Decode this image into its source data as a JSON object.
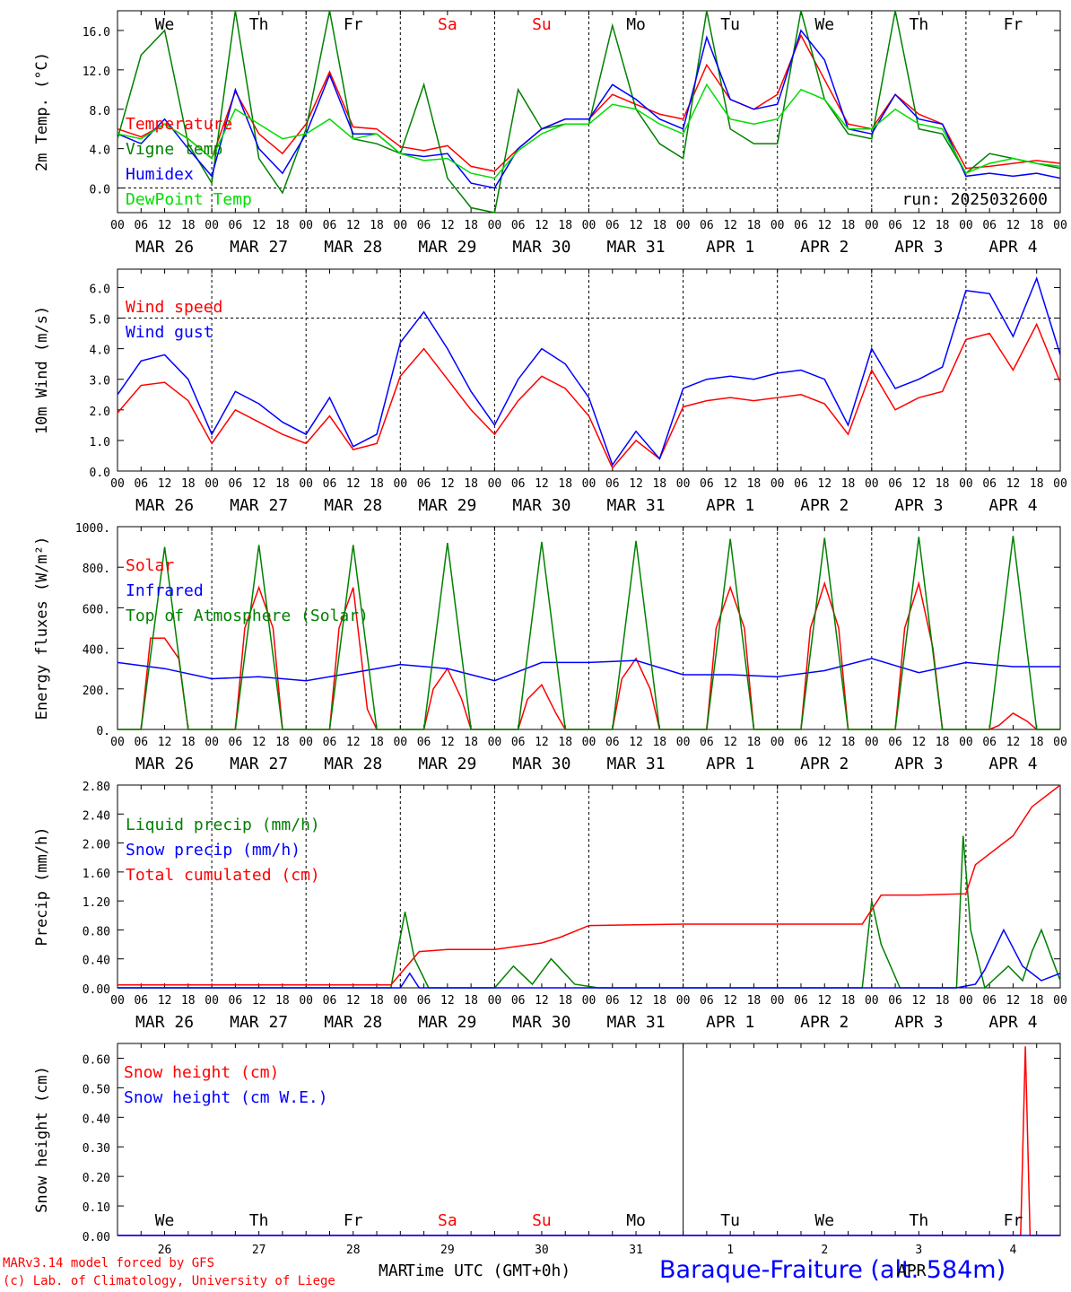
{
  "title": "Baraque-Fraiture (alt. 584m)",
  "run_label": "run: 2025032600",
  "footer": {
    "model": "MARv3.14 model forced by GFS",
    "credit": "(c) Lab. of Climatology, University of Liege",
    "xlabel": "Time UTC (GMT+0h)",
    "month_mar": "MAR",
    "month_apr": "APR"
  },
  "hour_ticks": [
    "00",
    "06",
    "12",
    "18"
  ],
  "day_labels": [
    "MAR 26",
    "MAR 27",
    "MAR 28",
    "MAR 29",
    "MAR 30",
    "MAR 31",
    "APR  1",
    "APR  2",
    "APR  3",
    "APR  4"
  ],
  "weekdays": [
    "We",
    "Th",
    "Fr",
    "Sa",
    "Su",
    "Mo",
    "Tu",
    "We",
    "Th",
    "Fr"
  ],
  "weekend_color": "#ff0000",
  "day_numbers": [
    "26",
    "27",
    "28",
    "29",
    "30",
    "31",
    "1",
    "2",
    "3",
    "4"
  ],
  "colors": {
    "red": "#ff0000",
    "blue": "#0000ff",
    "green": "#008000",
    "lightgreen": "#00dd00"
  },
  "chart_data": [
    {
      "type": "line",
      "ylabel": "2m Temp. (°C)",
      "ylim": [
        -2.5,
        18
      ],
      "yticks": [
        "0.0",
        "4.0",
        "8.0",
        "12.0",
        "16.0"
      ],
      "ytick_values": [
        0,
        4,
        8,
        12,
        16
      ],
      "ref_line": 0,
      "x_unit": "days since 2025-03-26 00 UTC",
      "series": [
        {
          "name": "Temperature",
          "color": "red",
          "x": [
            0,
            0.25,
            0.5,
            0.75,
            1,
            1.25,
            1.5,
            1.75,
            2,
            2.25,
            2.5,
            2.75,
            3,
            3.25,
            3.5,
            3.75,
            4,
            4.25,
            4.5,
            4.75,
            5,
            5.25,
            5.5,
            5.75,
            6,
            6.25,
            6.5,
            6.75,
            7,
            7.25,
            7.5,
            7.75,
            8,
            8.25,
            8.5,
            8.75,
            9,
            9.25,
            9.5,
            9.75,
            10
          ],
          "values": [
            6.0,
            5.2,
            6.5,
            5.0,
            3.0,
            9.8,
            5.5,
            3.5,
            6.5,
            11.8,
            6.2,
            6.0,
            4.2,
            3.8,
            4.3,
            2.2,
            1.7,
            4.0,
            6.0,
            7.0,
            7.0,
            9.5,
            8.5,
            7.5,
            7.0,
            12.5,
            9.0,
            8.0,
            9.5,
            15.5,
            11.0,
            6.5,
            6.0,
            9.5,
            7.5,
            6.5,
            2.0,
            2.2,
            2.5,
            2.8,
            2.5
          ]
        },
        {
          "name": "Vigne temp",
          "color": "green",
          "x": [
            0,
            0.25,
            0.5,
            0.75,
            1,
            1.25,
            1.5,
            1.75,
            2,
            2.25,
            2.5,
            2.75,
            3,
            3.25,
            3.5,
            3.75,
            4,
            4.25,
            4.5,
            4.75,
            5,
            5.25,
            5.5,
            5.75,
            6,
            6.25,
            6.5,
            6.75,
            7,
            7.25,
            7.5,
            7.75,
            8,
            8.25,
            8.5,
            8.75,
            9,
            9.25,
            9.5,
            9.75,
            10
          ],
          "values": [
            5.0,
            13.5,
            16.0,
            4.5,
            0.5,
            18.0,
            3.0,
            -0.5,
            6.0,
            18.0,
            5.0,
            4.5,
            3.5,
            10.5,
            1.0,
            -2.0,
            -2.5,
            10.0,
            6.0,
            6.5,
            6.5,
            16.5,
            8.0,
            4.5,
            3.0,
            18.0,
            6.0,
            4.5,
            4.5,
            18.0,
            9.0,
            5.5,
            5.0,
            18.0,
            6.0,
            5.5,
            1.5,
            3.5,
            3.0,
            2.5,
            2.0
          ]
        },
        {
          "name": "Humidex",
          "color": "blue",
          "x": [
            0,
            0.25,
            0.5,
            0.75,
            1,
            1.25,
            1.5,
            1.75,
            2,
            2.25,
            2.5,
            2.75,
            3,
            3.25,
            3.5,
            3.75,
            4,
            4.25,
            4.5,
            4.75,
            5,
            5.25,
            5.5,
            5.75,
            6,
            6.25,
            6.5,
            6.75,
            7,
            7.25,
            7.5,
            7.75,
            8,
            8.25,
            8.5,
            8.75,
            9,
            9.25,
            9.5,
            9.75,
            10
          ],
          "values": [
            5.5,
            4.5,
            7.0,
            4.0,
            1.2,
            10.0,
            4.0,
            1.5,
            5.5,
            11.5,
            5.5,
            5.5,
            3.5,
            3.2,
            3.5,
            0.5,
            0.0,
            4.0,
            6.0,
            7.0,
            7.0,
            10.5,
            9.0,
            7.0,
            6.0,
            15.3,
            9.0,
            8.0,
            8.5,
            16.0,
            13.0,
            6.0,
            5.5,
            9.5,
            7.0,
            6.5,
            1.2,
            1.5,
            1.2,
            1.5,
            1.0
          ]
        },
        {
          "name": "DewPoint Temp",
          "color": "lightgreen",
          "x": [
            0,
            0.25,
            0.5,
            0.75,
            1,
            1.25,
            1.5,
            1.75,
            2,
            2.25,
            2.5,
            2.75,
            3,
            3.25,
            3.5,
            3.75,
            4,
            4.25,
            4.5,
            4.75,
            5,
            5.25,
            5.5,
            5.75,
            6,
            6.25,
            6.5,
            6.75,
            7,
            7.25,
            7.5,
            7.75,
            8,
            8.25,
            8.5,
            8.75,
            9,
            9.25,
            9.5,
            9.75,
            10
          ],
          "values": [
            5.5,
            5.0,
            6.5,
            5.0,
            3.0,
            8.0,
            6.5,
            5.0,
            5.5,
            7.0,
            5.0,
            5.5,
            3.5,
            2.8,
            3.0,
            1.5,
            1.0,
            3.8,
            5.5,
            6.5,
            6.5,
            8.5,
            8.0,
            6.5,
            5.5,
            10.5,
            7.0,
            6.5,
            7.0,
            10.0,
            9.0,
            6.0,
            6.0,
            8.0,
            6.5,
            6.0,
            1.5,
            2.5,
            3.0,
            2.5,
            2.2
          ]
        }
      ]
    },
    {
      "type": "line",
      "ylabel": "10m Wind (m/s)",
      "ylim": [
        0,
        6.6
      ],
      "yticks": [
        "0.0",
        "1.0",
        "2.0",
        "3.0",
        "4.0",
        "5.0",
        "6.0"
      ],
      "ytick_values": [
        0,
        1,
        2,
        3,
        4,
        5,
        6
      ],
      "ref_line": 5,
      "x_unit": "days since 2025-03-26 00 UTC",
      "series": [
        {
          "name": "Wind speed",
          "color": "red",
          "x": [
            0,
            0.25,
            0.5,
            0.75,
            1,
            1.25,
            1.5,
            1.75,
            2,
            2.25,
            2.5,
            2.75,
            3,
            3.25,
            3.5,
            3.75,
            4,
            4.25,
            4.5,
            4.75,
            5,
            5.25,
            5.5,
            5.75,
            6,
            6.25,
            6.5,
            6.75,
            7,
            7.25,
            7.5,
            7.75,
            8,
            8.25,
            8.5,
            8.75,
            9,
            9.25,
            9.5,
            9.75,
            10
          ],
          "values": [
            1.9,
            2.8,
            2.9,
            2.3,
            0.9,
            2.0,
            1.6,
            1.2,
            0.9,
            1.8,
            0.7,
            0.9,
            3.1,
            4.0,
            3.0,
            2.0,
            1.2,
            2.3,
            3.1,
            2.7,
            1.8,
            0.1,
            1.0,
            0.4,
            2.1,
            2.3,
            2.4,
            2.3,
            2.4,
            2.5,
            2.2,
            1.2,
            3.3,
            2.0,
            2.4,
            2.6,
            4.3,
            4.5,
            3.3,
            4.8,
            2.9
          ]
        },
        {
          "name": "Wind gust",
          "color": "blue",
          "x": [
            0,
            0.25,
            0.5,
            0.75,
            1,
            1.25,
            1.5,
            1.75,
            2,
            2.25,
            2.5,
            2.75,
            3,
            3.25,
            3.5,
            3.75,
            4,
            4.25,
            4.5,
            4.75,
            5,
            5.25,
            5.5,
            5.75,
            6,
            6.25,
            6.5,
            6.75,
            7,
            7.25,
            7.5,
            7.75,
            8,
            8.25,
            8.5,
            8.75,
            9,
            9.25,
            9.5,
            9.75,
            10
          ],
          "values": [
            2.5,
            3.6,
            3.8,
            3.0,
            1.2,
            2.6,
            2.2,
            1.6,
            1.2,
            2.4,
            0.8,
            1.2,
            4.2,
            5.2,
            4.0,
            2.6,
            1.5,
            3.0,
            4.0,
            3.5,
            2.4,
            0.2,
            1.3,
            0.4,
            2.7,
            3.0,
            3.1,
            3.0,
            3.2,
            3.3,
            3.0,
            1.5,
            4.0,
            2.7,
            3.0,
            3.4,
            5.9,
            5.8,
            4.4,
            6.3,
            3.8
          ]
        }
      ]
    },
    {
      "type": "line",
      "ylabel": "Energy fluxes (W/m²)",
      "ylim": [
        0,
        1000
      ],
      "yticks": [
        "0.",
        "200.",
        "400.",
        "600.",
        "800.",
        "1000."
      ],
      "ytick_values": [
        0,
        200,
        400,
        600,
        800,
        1000
      ],
      "x_unit": "days since 2025-03-26 00 UTC",
      "series": [
        {
          "name": "Solar",
          "color": "red",
          "x": [
            0,
            0.25,
            0.35,
            0.5,
            0.65,
            0.75,
            1,
            1.25,
            1.35,
            1.5,
            1.65,
            1.75,
            2,
            2.25,
            2.35,
            2.5,
            2.65,
            2.75,
            3,
            3.25,
            3.35,
            3.5,
            3.65,
            3.75,
            4,
            4.25,
            4.35,
            4.5,
            4.65,
            4.75,
            5,
            5.25,
            5.35,
            5.5,
            5.65,
            5.75,
            6,
            6.25,
            6.35,
            6.5,
            6.65,
            6.75,
            7,
            7.25,
            7.35,
            7.5,
            7.65,
            7.75,
            8,
            8.25,
            8.35,
            8.5,
            8.65,
            8.75,
            9,
            9.25,
            9.35,
            9.5,
            9.65,
            9.75,
            10
          ],
          "values": [
            0,
            0,
            450,
            450,
            350,
            0,
            0,
            0,
            500,
            700,
            500,
            0,
            0,
            0,
            500,
            700,
            100,
            0,
            0,
            0,
            200,
            300,
            150,
            0,
            0,
            0,
            150,
            220,
            80,
            0,
            0,
            0,
            250,
            350,
            200,
            0,
            0,
            0,
            500,
            700,
            500,
            0,
            0,
            0,
            500,
            720,
            500,
            0,
            0,
            0,
            500,
            720,
            400,
            0,
            0,
            0,
            20,
            80,
            40,
            0,
            0
          ]
        },
        {
          "name": "Infrared",
          "color": "blue",
          "x": [
            0,
            0.5,
            1,
            1.5,
            2,
            2.5,
            3,
            3.5,
            4,
            4.5,
            5,
            5.5,
            6,
            6.5,
            7,
            7.5,
            8,
            8.5,
            9,
            9.5,
            10
          ],
          "values": [
            330,
            300,
            250,
            260,
            240,
            280,
            320,
            300,
            240,
            330,
            330,
            340,
            270,
            270,
            260,
            290,
            350,
            280,
            330,
            310,
            310
          ]
        },
        {
          "name": "Top of Atmosphere (Solar)",
          "color": "green",
          "x": [
            0,
            0.25,
            0.5,
            0.75,
            1,
            1.25,
            1.5,
            1.75,
            2,
            2.25,
            2.5,
            2.75,
            3,
            3.25,
            3.5,
            3.75,
            4,
            4.25,
            4.5,
            4.75,
            5,
            5.25,
            5.5,
            5.75,
            6,
            6.25,
            6.5,
            6.75,
            7,
            7.25,
            7.5,
            7.75,
            8,
            8.25,
            8.5,
            8.75,
            9,
            9.25,
            9.5,
            9.75,
            10
          ],
          "values": [
            0,
            0,
            900,
            0,
            0,
            0,
            910,
            0,
            0,
            0,
            910,
            0,
            0,
            0,
            920,
            0,
            0,
            0,
            925,
            0,
            0,
            0,
            930,
            0,
            0,
            0,
            940,
            0,
            0,
            0,
            945,
            0,
            0,
            0,
            950,
            0,
            0,
            0,
            955,
            0,
            0
          ]
        }
      ]
    },
    {
      "type": "line",
      "ylabel": "Precip (mm/h)",
      "ylim": [
        0,
        2.8
      ],
      "yticks": [
        "0.00",
        "0.40",
        "0.80",
        "1.20",
        "1.60",
        "2.00",
        "2.40",
        "2.80"
      ],
      "ytick_values": [
        0,
        0.4,
        0.8,
        1.2,
        1.6,
        2.0,
        2.4,
        2.8
      ],
      "x_unit": "days since 2025-03-26 00 UTC",
      "series": [
        {
          "name": "Liquid precip (mm/h)",
          "color": "green",
          "x": [
            0,
            2.9,
            3.05,
            3.15,
            3.3,
            4.0,
            4.2,
            4.4,
            4.6,
            4.85,
            5.1,
            5.5,
            7.9,
            8.0,
            8.1,
            8.3,
            8.9,
            8.97,
            9.05,
            9.2,
            9.45,
            9.6,
            9.7,
            9.8,
            10
          ],
          "values": [
            0,
            0,
            1.05,
            0.4,
            0,
            0,
            0.3,
            0.05,
            0.4,
            0.05,
            0,
            0,
            0,
            1.2,
            0.6,
            0,
            0,
            2.1,
            0.8,
            0,
            0.3,
            0.1,
            0.5,
            0.8,
            0.1
          ]
        },
        {
          "name": "Snow precip (mm/h)",
          "color": "blue",
          "x": [
            0,
            3.0,
            3.1,
            3.2,
            4.0,
            8.9,
            9.1,
            9.2,
            9.4,
            9.6,
            9.8,
            10
          ],
          "values": [
            0,
            0,
            0.2,
            0,
            0,
            0,
            0.05,
            0.25,
            0.8,
            0.3,
            0.1,
            0.2
          ]
        },
        {
          "name": "Total cumulated (cm)",
          "color": "red",
          "x": [
            0,
            2.9,
            3.2,
            3.5,
            4.0,
            4.5,
            4.7,
            5.0,
            5.5,
            6.0,
            7.0,
            7.9,
            8.1,
            8.5,
            9.0,
            9.1,
            9.5,
            9.7,
            10
          ],
          "values": [
            0.04,
            0.04,
            0.5,
            0.53,
            0.53,
            0.62,
            0.7,
            0.86,
            0.87,
            0.88,
            0.88,
            0.88,
            1.28,
            1.28,
            1.3,
            1.7,
            2.1,
            2.5,
            2.8
          ]
        }
      ]
    },
    {
      "type": "line",
      "ylabel": "Snow height (cm)",
      "ylim": [
        0,
        0.65
      ],
      "yticks": [
        "0.00",
        "0.10",
        "0.20",
        "0.30",
        "0.40",
        "0.50",
        "0.60"
      ],
      "ytick_values": [
        0,
        0.1,
        0.2,
        0.3,
        0.4,
        0.5,
        0.6
      ],
      "x_unit": "days since 2025-03-26 00 UTC",
      "series": [
        {
          "name": "Snow height (cm)",
          "color": "red",
          "x": [
            0,
            9.58,
            9.63,
            9.68,
            10
          ],
          "values": [
            0,
            0,
            0.64,
            0,
            0
          ]
        },
        {
          "name": "Snow height (cm W.E.)",
          "color": "blue",
          "x": [
            0,
            10
          ],
          "values": [
            0,
            0
          ]
        }
      ]
    }
  ]
}
